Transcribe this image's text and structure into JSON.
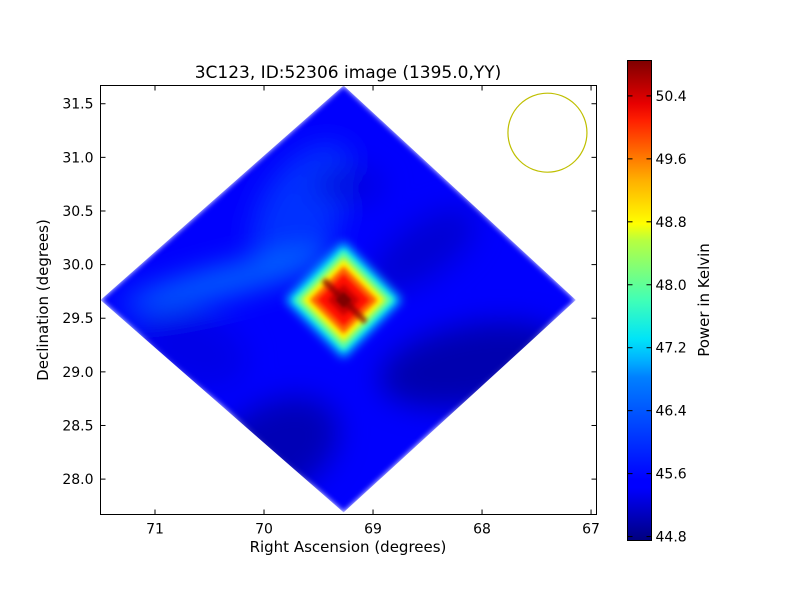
{
  "chart_data": {
    "type": "heatmap",
    "title": "3C123, ID:52306 image (1395.0,YY)",
    "xlabel": "Right Ascension (degrees)",
    "ylabel": "Declination (degrees)",
    "xlim": [
      71.5,
      66.95
    ],
    "ylim": [
      27.67,
      31.67
    ],
    "xticks": [
      71,
      70,
      69,
      68,
      67
    ],
    "xtick_labels": [
      "71",
      "70",
      "69",
      "68",
      "67"
    ],
    "yticks": [
      28.0,
      28.5,
      29.0,
      29.5,
      30.0,
      30.5,
      31.0,
      31.5
    ],
    "ytick_labels": [
      "28.0",
      "28.5",
      "29.0",
      "29.5",
      "30.0",
      "30.5",
      "31.0",
      "31.5"
    ],
    "colormap": "jet",
    "colorbar": {
      "label": "Power in Kelvin",
      "min": 44.75,
      "max": 50.85,
      "ticks": [
        44.8,
        45.6,
        46.4,
        47.2,
        48.0,
        48.8,
        49.6,
        50.4
      ],
      "tick_labels": [
        "44.8",
        "45.6",
        "46.4",
        "47.2",
        "48.0",
        "48.8",
        "49.6",
        "50.4"
      ]
    },
    "source": {
      "ra": 69.27,
      "dec": 29.67,
      "peak_value": 50.85
    },
    "background_value": 45.5,
    "footprint_corners": [
      {
        "ra": 69.27,
        "dec": 31.67
      },
      {
        "ra": 67.14,
        "dec": 29.67
      },
      {
        "ra": 69.27,
        "dec": 27.69
      },
      {
        "ra": 71.5,
        "dec": 29.67
      }
    ],
    "beam": {
      "ra": 67.4,
      "dec": 31.23,
      "color": "#bfbf00"
    }
  }
}
